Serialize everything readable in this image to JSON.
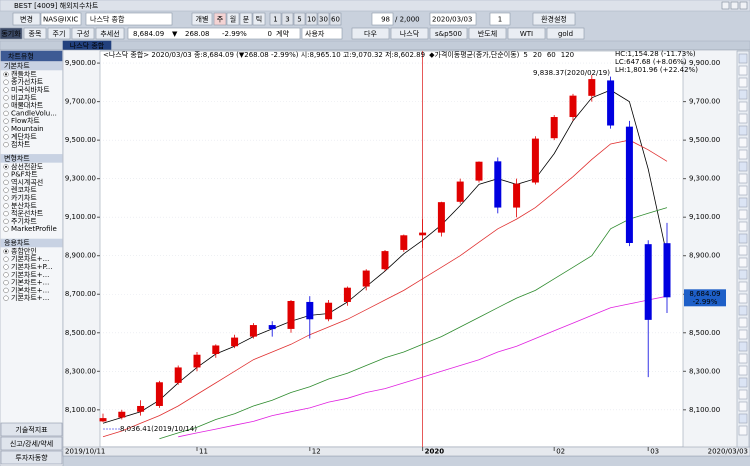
{
  "title_bar": "BEST [4009] 해외지수차트",
  "toolbar": {
    "change": "변경",
    "code": "NAS@IXIC",
    "name": "나스닥 종합",
    "mode": "개별",
    "periods": [
      "주",
      "월",
      "분",
      "틱"
    ],
    "intervals": [
      "1",
      "3",
      "5",
      "10",
      "30",
      "60"
    ],
    "count": "98",
    "total": "/ 2,000",
    "date": "2020/03/03",
    "unit": "1",
    "settings": "환경설정"
  },
  "toolbar2": {
    "buttons": [
      "동기화",
      "종목",
      "주기",
      "구성",
      "추세선"
    ],
    "price": "8,684.09",
    "arrow": "▼",
    "change": "268.08",
    "rate": "-2.99%",
    "qty": "0",
    "qty_unit": "계약",
    "user": "사용자",
    "shortcuts": [
      "다우",
      "나스닥",
      "s&p500",
      "반도체",
      "WTI",
      "gold"
    ]
  },
  "tab": "나스닥 종합",
  "sidebar": {
    "header": "차트유형",
    "groups": [
      {
        "name": "기본차트",
        "items": [
          "캔들차트",
          "종가선차트",
          "미국식바차트",
          "비교차트",
          "매물대차트",
          "CandleVolu...",
          "Flow차트",
          "Mountain",
          "계단차트",
          "점차트"
        ]
      },
      {
        "name": "변형차트",
        "items": [
          "삼선전환도",
          "P&F차트",
          "역시계곡선",
          "렌코차트",
          "카기차트",
          "분산차트",
          "적운선차트",
          "주기차트",
          "MarketProfile"
        ]
      },
      {
        "name": "응용차트",
        "items": [
          "종합만인",
          "기본차트+...",
          "기본차트+P...",
          "기본차트+...",
          "기본차트+...",
          "기본차트+...",
          "기본차트+..."
        ]
      }
    ],
    "bottom": [
      "기술적지표",
      "신고/강세/약세",
      "투자자동향"
    ]
  },
  "chart_data": {
    "type": "candlestick",
    "header": "<나스닥 종합> 2020/03/03 종:8,684.09 (▼268.08 -2.99%) 시:8,965.10 고:9,070.32 저:8,602.89",
    "indicator": "◆가격이동평균(종가,단순이동)",
    "annotations": [
      {
        "text": "HC:1,154.28 (-11.73%)",
        "color": "#0000ff"
      },
      {
        "text": "LC:647.68 (+8.06%)",
        "color": "#e00000"
      },
      {
        "text": "LH:1,801.96 (+22.42%)",
        "color": "#000000"
      },
      {
        "text": "9,838.37(2020/02/19)",
        "color": "#e00000"
      },
      {
        "text": "8,036.41(2019/10/14)",
        "color": "#0000ff"
      }
    ],
    "categories": [
      "2019/10/11",
      null,
      null,
      null,
      null,
      "11",
      null,
      null,
      null,
      null,
      null,
      "12",
      null,
      null,
      null,
      null,
      null,
      "2020",
      null,
      null,
      null,
      null,
      null,
      null,
      "02",
      null,
      null,
      null,
      null,
      "03",
      null
    ],
    "x_end_label": "2020/03/03",
    "up_color": "#e00000",
    "down_color": "#0000e0",
    "open": [
      8040,
      8060,
      8090,
      8120,
      8240,
      8320,
      8390,
      8430,
      8480,
      8540,
      8520,
      8660,
      8570,
      8660,
      8740,
      8830,
      8930,
      9006,
      9020,
      9180,
      9290,
      9390,
      9150,
      9280,
      9510,
      9620,
      9730,
      9810,
      9570,
      8960,
      8965.1
    ],
    "high": [
      8080,
      8100,
      8150,
      8250,
      8330,
      8400,
      8440,
      8490,
      8550,
      8560,
      8670,
      8690,
      8670,
      8740,
      8830,
      8930,
      9010,
      9090,
      9180,
      9300,
      9390,
      9410,
      9300,
      9520,
      9630,
      9740,
      9838.37,
      9830,
      9600,
      8980,
      9070.32
    ],
    "low": [
      8036.41,
      8050,
      8070,
      8110,
      8230,
      8300,
      8370,
      8420,
      8470,
      8480,
      8500,
      8470,
      8560,
      8640,
      8720,
      8820,
      8920,
      8940,
      9000,
      9170,
      9280,
      9120,
      9100,
      9270,
      9500,
      9600,
      9700,
      9560,
      8950,
      8270,
      8602.89
    ],
    "close": [
      8057,
      8090,
      8120,
      8243,
      8320,
      8386,
      8434,
      8475,
      8540,
      8519,
      8665,
      8570,
      8656,
      8734,
      8823,
      8924,
      9006,
      9020,
      9178,
      9285,
      9388,
      9150,
      9274,
      9508,
      9620,
      9731,
      9817,
      9576,
      8966,
      8567,
      8684.09
    ],
    "series": [
      {
        "name": "5",
        "color": "#000000",
        "values": [
          8030,
          8060,
          8090,
          8150,
          8240,
          8320,
          8390,
          8430,
          8480,
          8520,
          8560,
          8590,
          8600,
          8660,
          8740,
          8820,
          8910,
          8980,
          9060,
          9160,
          9270,
          9300,
          9270,
          9300,
          9430,
          9600,
          9720,
          9760,
          9700,
          9350,
          8900
        ]
      },
      {
        "name": "20",
        "color": "#e03030",
        "values": [
          7960,
          7990,
          8030,
          8070,
          8120,
          8180,
          8240,
          8300,
          8360,
          8400,
          8440,
          8490,
          8530,
          8570,
          8620,
          8670,
          8720,
          8780,
          8840,
          8900,
          8970,
          9040,
          9090,
          9150,
          9230,
          9310,
          9400,
          9480,
          9500,
          9450,
          9390
        ]
      },
      {
        "name": "60",
        "color": "#2e8b2e",
        "values": [
          null,
          null,
          null,
          7950,
          7980,
          8010,
          8050,
          8080,
          8120,
          8150,
          8190,
          8220,
          8260,
          8290,
          8330,
          8370,
          8400,
          8440,
          8480,
          8530,
          8580,
          8630,
          8680,
          8720,
          8780,
          8840,
          8900,
          9040,
          9090,
          9120,
          9150
        ]
      },
      {
        "name": "120",
        "color": "#e020e0",
        "values": [
          null,
          null,
          null,
          null,
          7960,
          7980,
          8000,
          8020,
          8040,
          8070,
          8090,
          8110,
          8140,
          8160,
          8190,
          8210,
          8240,
          8270,
          8300,
          8330,
          8360,
          8400,
          8430,
          8470,
          8510,
          8550,
          8590,
          8630,
          8650,
          8670,
          8690
        ]
      }
    ],
    "ylim": [
      7907,
      9942
    ],
    "yticks": [
      {
        "value": 8100,
        "label": "8,100.00"
      },
      {
        "value": 8300,
        "label": "8,300.00"
      },
      {
        "value": 8500,
        "label": "8,500.00"
      },
      {
        "value": 8700,
        "label": "8,700.00"
      },
      {
        "value": 8900,
        "label": "8,900.00"
      },
      {
        "value": 9100,
        "label": "9,100.00"
      },
      {
        "value": 9300,
        "label": "9,300.00"
      },
      {
        "value": 9500,
        "label": "9,500.00"
      },
      {
        "value": 9700,
        "label": "9,700.00"
      },
      {
        "value": 9900,
        "label": "9,900.00"
      }
    ],
    "grid": true
  }
}
